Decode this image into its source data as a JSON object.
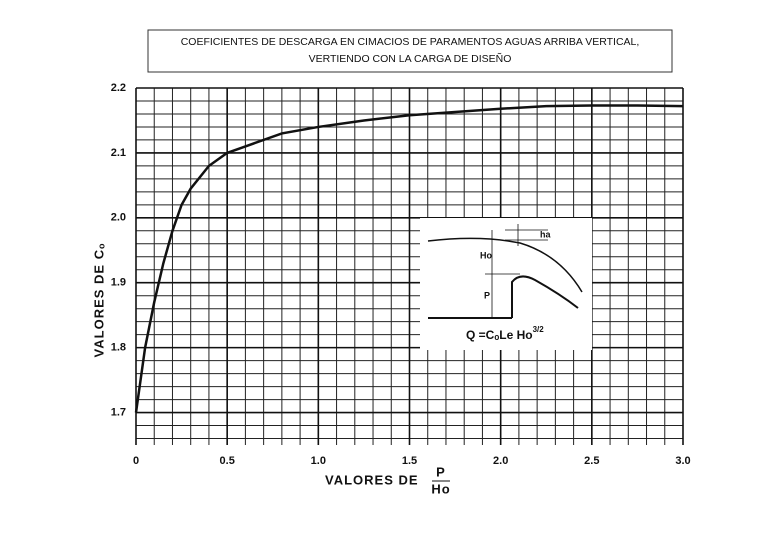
{
  "chart_data": {
    "type": "line",
    "title": [
      "COEFICIENTES DE DESCARGA EN CIMACIOS DE PARAMENTOS AGUAS ARRIBA VERTICAL,",
      "VERTIENDO CON LA CARGA DE DISEÑO"
    ],
    "x_label": "VALORES DE",
    "x_label_fraction": {
      "numerator": "P",
      "denominator": "Ho"
    },
    "y_label": "VALORES DE Cₒ",
    "x": [
      0,
      0.05,
      0.1,
      0.15,
      0.2,
      0.25,
      0.3,
      0.4,
      0.5,
      0.6,
      0.8,
      1.0,
      1.25,
      1.5,
      1.75,
      2.0,
      2.25,
      2.5,
      2.75,
      3.0
    ],
    "series": [
      {
        "color": "#111111",
        "values": [
          1.7,
          1.8,
          1.87,
          1.93,
          1.98,
          2.02,
          2.045,
          2.08,
          2.1,
          2.11,
          2.13,
          2.14,
          2.15,
          2.158,
          2.163,
          2.168,
          2.172,
          2.173,
          2.173,
          2.172
        ]
      }
    ],
    "xlim": [
      0,
      3.0
    ],
    "xticks": [
      0,
      0.5,
      {
        "value": 1,
        "label": "1.0"
      },
      1.5,
      {
        "value": 2,
        "label": "2.0"
      },
      2.5,
      {
        "value": 3,
        "label": "3.0"
      }
    ],
    "ylim": [
      1.65,
      2.2
    ],
    "yticks": [
      1.7,
      1.8,
      1.9,
      {
        "value": 2,
        "label": "2.0"
      },
      2.1,
      2.2
    ],
    "grid": true,
    "minor_grid": true,
    "inset": {
      "labels": [
        "ha",
        "Ho",
        "P"
      ],
      "formula": "Q =CₒLe Ho",
      "exponent": "3/2"
    }
  }
}
